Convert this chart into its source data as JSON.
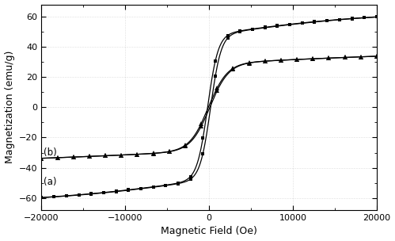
{
  "title": "",
  "xlabel": "Magnetic Field (Oe)",
  "ylabel": "Magnetization (emu/g)",
  "xlim": [
    -20000,
    20000
  ],
  "ylim": [
    -68,
    68
  ],
  "label_a": "(a)",
  "label_b": "(b)",
  "curve_a_sat": 63.5,
  "curve_a_hc": 180,
  "curve_a_a_param": 2500,
  "curve_b_sat": 38.5,
  "curve_b_a_param": 4500,
  "background_color": "#ffffff",
  "marker_color": "#000000",
  "line_color": "#000000",
  "xticks": [
    -20000,
    -10000,
    0,
    10000,
    20000
  ],
  "yticks": [
    -60,
    -40,
    -20,
    0,
    20,
    40,
    60
  ]
}
